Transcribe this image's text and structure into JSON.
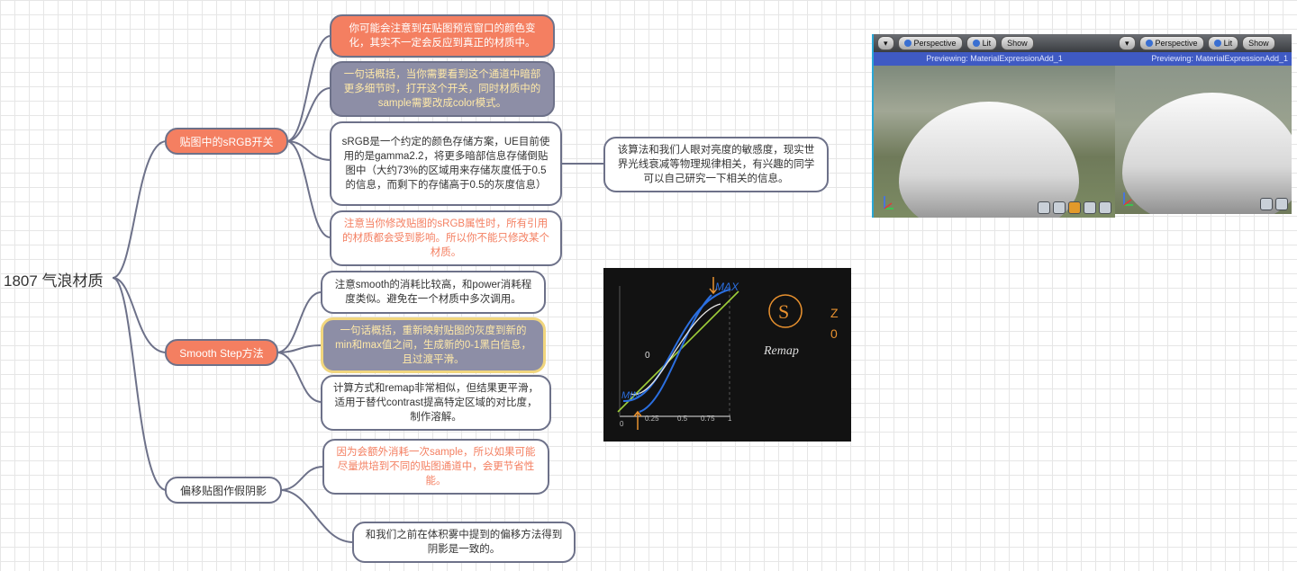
{
  "root": {
    "title": "1807 气浪材质"
  },
  "branches": [
    {
      "label": "贴图中的sRGB开关",
      "children": [
        "你可能会注意到在贴图预览窗口的颜色变化，其实不一定会反应到真正的材质中。",
        "一句话概括，当你需要看到这个通道中暗部更多细节时，打开这个开关，同时材质中的sample需要改成color模式。",
        "sRGB是一个约定的颜色存储方案，UE目前使用的是gamma2.2，将更多暗部信息存储倒贴图中（大约73%的区域用来存储灰度低于0.5的信息，而剩下的存储高于0.5的灰度信息）",
        "注意当你修改贴图的sRGB属性时，所有引用的材质都会受到影响。所以你不能只修改某个材质。"
      ],
      "side_note": "该算法和我们人眼对亮度的敏感度，现实世界光线衰减等物理规律相关，有兴趣的同学可以自己研究一下相关的信息。"
    },
    {
      "label": "Smooth Step方法",
      "children": [
        "注意smooth的消耗比较高，和power消耗程度类似。避免在一个材质中多次调用。",
        "一句话概括，重新映射贴图的灰度到新的min和max值之间，生成新的0-1黑白信息，且过渡平滑。",
        "计算方式和remap非常相似，但结果更平滑，适用于替代contrast提高特定区域的对比度，制作溶解。"
      ]
    },
    {
      "label": "偏移贴图作假阴影",
      "children": [
        "因为会额外消耗一次sample，所以如果可能尽量烘培到不同的贴图通道中，会更节省性能。",
        "和我们之前在体积雾中提到的偏移方法得到阴影是一致的。"
      ]
    }
  ],
  "previews": [
    {
      "buttons": [
        "Perspective",
        "Lit",
        "Show"
      ],
      "title": "Previewing: MaterialExpressionAdd_1"
    },
    {
      "buttons": [
        "Perspective",
        "Lit",
        "Show"
      ],
      "title": "Previewing: MaterialExpressionAdd_1"
    }
  ],
  "chalkboard": {
    "max_label": "MAX",
    "min_label": "MIN",
    "word": "Remap",
    "ticks": [
      "0",
      "0.25",
      "0.5",
      "0.75",
      "1"
    ],
    "zero_top": "0",
    "zero_left": "0"
  },
  "colors": {
    "orange": "#f47f61",
    "slate": "#8d8ea6",
    "border": "#6d7189",
    "yellow_text": "#ffe9a8"
  }
}
